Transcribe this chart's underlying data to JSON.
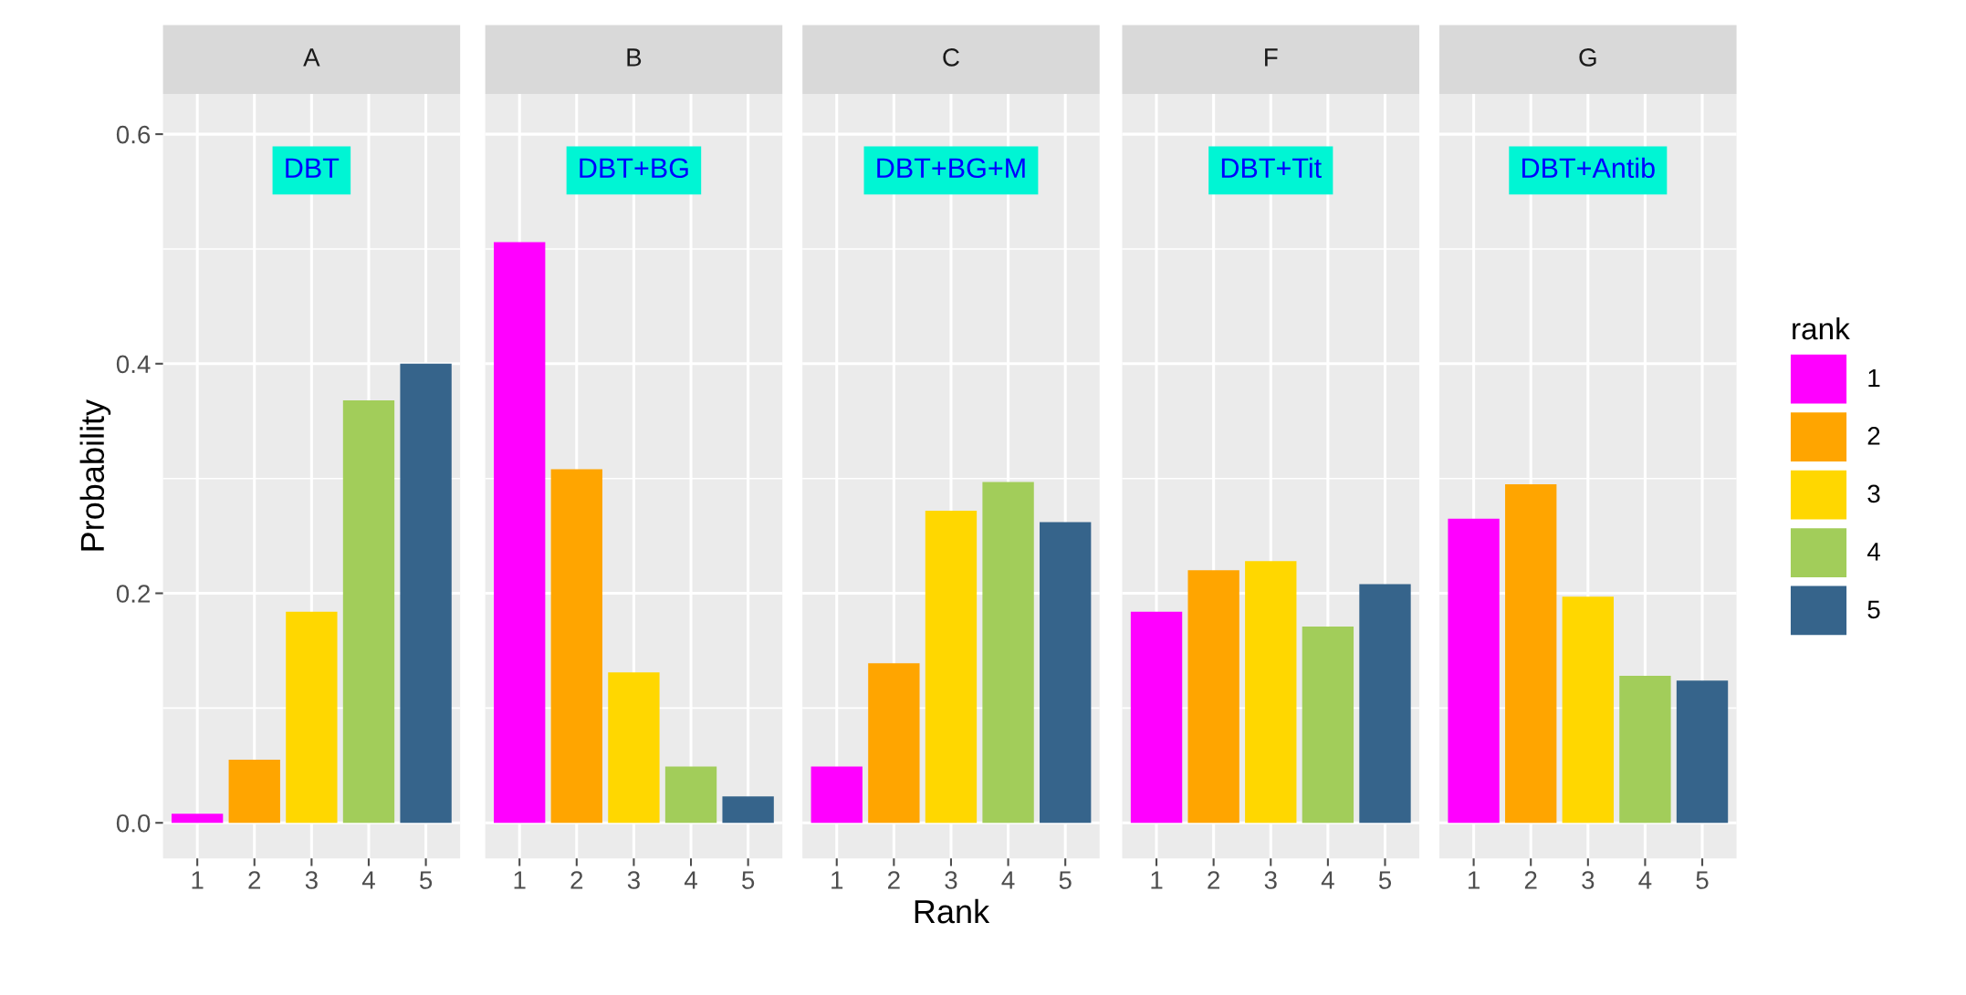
{
  "chart_data": [
    {
      "type": "bar",
      "title": "A",
      "annotations": [
        "DBT"
      ],
      "ylabel": "Probability",
      "categories": [
        "1",
        "2",
        "3",
        "4",
        "5"
      ],
      "series": [
        {
          "name": "1",
          "color": "#ff00ff",
          "values": [
            0.008,
            null,
            null,
            null,
            null
          ]
        },
        {
          "name": "2",
          "color": "#ffa500",
          "values": [
            null,
            0.055,
            null,
            null,
            null
          ]
        },
        {
          "name": "3",
          "color": "#ffd700",
          "values": [
            null,
            null,
            0.184,
            null,
            null
          ]
        },
        {
          "name": "4",
          "color": "#a2cd5a",
          "values": [
            null,
            null,
            null,
            0.368,
            null
          ]
        },
        {
          "name": "5",
          "color": "#36648b",
          "values": [
            null,
            null,
            null,
            null,
            0.4
          ]
        }
      ],
      "ylim": [
        -0.031,
        0.635
      ],
      "yticks": [
        {
          "value": 0,
          "label": "0.0"
        },
        {
          "value": 0.2,
          "label": "0.2"
        },
        {
          "value": 0.4,
          "label": "0.4"
        },
        {
          "value": 0.6,
          "label": "0.6"
        }
      ],
      "grid": true,
      "legend": "right",
      "legend_title": "rank"
    },
    {
      "type": "bar",
      "title": "B",
      "annotations": [
        "DBT+BG"
      ],
      "categories": [
        "1",
        "2",
        "3",
        "4",
        "5"
      ],
      "series": [
        {
          "color": "#ff00ff",
          "values": [
            0.506,
            null,
            null,
            null,
            null
          ]
        },
        {
          "color": "#ffa500",
          "values": [
            null,
            0.308,
            null,
            null,
            null
          ]
        },
        {
          "color": "#ffd700",
          "values": [
            null,
            null,
            0.131,
            null,
            null
          ]
        },
        {
          "color": "#a2cd5a",
          "values": [
            null,
            null,
            null,
            0.049,
            null
          ]
        },
        {
          "color": "#36648b",
          "values": [
            null,
            null,
            null,
            null,
            0.023
          ]
        }
      ],
      "ylim": [
        -0.031,
        0.635
      ],
      "yticks": [
        0,
        0.2,
        0.4,
        0.6
      ],
      "grid": true,
      "tick_labels": "x"
    },
    {
      "type": "bar",
      "title": "C",
      "annotations": [
        "DBT+BG+M"
      ],
      "xlabel": "Rank",
      "categories": [
        "1",
        "2",
        "3",
        "4",
        "5"
      ],
      "series": [
        {
          "color": "#ff00ff",
          "values": [
            0.049,
            null,
            null,
            null,
            null
          ]
        },
        {
          "color": "#ffa500",
          "values": [
            null,
            0.139,
            null,
            null,
            null
          ]
        },
        {
          "color": "#ffd700",
          "values": [
            null,
            null,
            0.272,
            null,
            null
          ]
        },
        {
          "color": "#a2cd5a",
          "values": [
            null,
            null,
            null,
            0.297,
            null
          ]
        },
        {
          "color": "#36648b",
          "values": [
            null,
            null,
            null,
            null,
            0.262
          ]
        }
      ],
      "ylim": [
        -0.031,
        0.635
      ],
      "yticks": [
        0,
        0.2,
        0.4,
        0.6
      ],
      "grid": true,
      "tick_labels": "x"
    },
    {
      "type": "bar",
      "title": "F",
      "annotations": [
        "DBT+Tit"
      ],
      "categories": [
        "1",
        "2",
        "3",
        "4",
        "5"
      ],
      "series": [
        {
          "color": "#ff00ff",
          "values": [
            0.184,
            null,
            null,
            null,
            null
          ]
        },
        {
          "color": "#ffa500",
          "values": [
            null,
            0.22,
            null,
            null,
            null
          ]
        },
        {
          "color": "#ffd700",
          "values": [
            null,
            null,
            0.228,
            null,
            null
          ]
        },
        {
          "color": "#a2cd5a",
          "values": [
            null,
            null,
            null,
            0.171,
            null
          ]
        },
        {
          "color": "#36648b",
          "values": [
            null,
            null,
            null,
            null,
            0.208
          ]
        }
      ],
      "ylim": [
        -0.031,
        0.635
      ],
      "yticks": [
        0,
        0.2,
        0.4,
        0.6
      ],
      "grid": true,
      "tick_labels": "x"
    },
    {
      "type": "bar",
      "title": "G",
      "annotations": [
        "DBT+Antib"
      ],
      "categories": [
        "1",
        "2",
        "3",
        "4",
        "5"
      ],
      "series": [
        {
          "color": "#ff00ff",
          "values": [
            0.265,
            null,
            null,
            null,
            null
          ]
        },
        {
          "color": "#ffa500",
          "values": [
            null,
            0.295,
            null,
            null,
            null
          ]
        },
        {
          "color": "#ffd700",
          "values": [
            null,
            null,
            0.197,
            null,
            null
          ]
        },
        {
          "color": "#a2cd5a",
          "values": [
            null,
            null,
            null,
            0.128,
            null
          ]
        },
        {
          "color": "#36648b",
          "values": [
            null,
            null,
            null,
            null,
            0.124
          ]
        }
      ],
      "ylim": [
        -0.031,
        0.635
      ],
      "yticks": [
        0,
        0.2,
        0.4,
        0.6
      ],
      "grid": true,
      "tick_labels": "x"
    }
  ]
}
